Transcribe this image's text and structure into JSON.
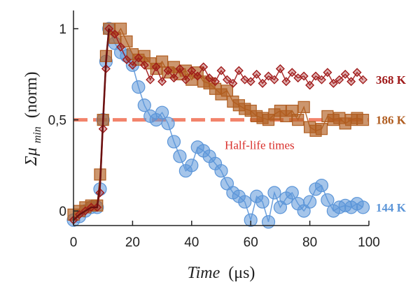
{
  "chart_data": {
    "type": "scatter",
    "xlabel_main": "Time",
    "xlabel_unit": "(μs)",
    "ylabel_main": "Σμ",
    "ylabel_sub": "min",
    "ylabel_unit": "(norm)",
    "xlim": [
      0,
      100
    ],
    "ylim": [
      -0.08,
      1.1
    ],
    "x_ticks": [
      0,
      20,
      40,
      60,
      80,
      100
    ],
    "x_tick_labels": [
      "0",
      "20",
      "40",
      "60",
      "80",
      "100"
    ],
    "y_ticks": [
      0,
      0.5,
      1
    ],
    "y_tick_labels": [
      "0",
      "0,5",
      "1"
    ],
    "grid": false,
    "reference_line": {
      "y": 0.5,
      "color": "#f2836b",
      "style": "dashed"
    },
    "annotation": {
      "text": "Half-life times",
      "x": 63,
      "y": 0.34,
      "color": "#d9302c"
    },
    "series": [
      {
        "name": "368 K",
        "color": "#a01a1a",
        "marker": "diamond",
        "x": [
          0,
          2,
          4,
          6,
          8,
          9,
          10,
          11,
          12,
          14,
          16,
          18,
          20,
          22,
          24,
          26,
          28,
          30,
          32,
          34,
          36,
          38,
          40,
          42,
          44,
          46,
          48,
          50,
          52,
          54,
          56,
          58,
          60,
          62,
          64,
          66,
          68,
          70,
          72,
          74,
          76,
          78,
          80,
          82,
          84,
          86,
          88,
          90,
          92,
          94,
          96,
          98
        ],
        "y": [
          -0.05,
          -0.02,
          0.0,
          0.02,
          0.02,
          0.1,
          0.45,
          0.78,
          1.0,
          0.97,
          0.9,
          0.83,
          0.8,
          0.84,
          0.8,
          0.72,
          0.79,
          0.71,
          0.77,
          0.73,
          0.78,
          0.72,
          0.77,
          0.74,
          0.79,
          0.73,
          0.71,
          0.77,
          0.72,
          0.7,
          0.77,
          0.72,
          0.71,
          0.75,
          0.7,
          0.74,
          0.72,
          0.78,
          0.71,
          0.76,
          0.73,
          0.74,
          0.69,
          0.74,
          0.72,
          0.76,
          0.7,
          0.72,
          0.75,
          0.71,
          0.76,
          0.72
        ]
      },
      {
        "name": "186 K",
        "color": "#b05d20",
        "marker": "square",
        "x": [
          0,
          2,
          4,
          6,
          8,
          9,
          10,
          11,
          12,
          14,
          16,
          18,
          20,
          22,
          24,
          26,
          28,
          30,
          32,
          34,
          36,
          38,
          40,
          42,
          44,
          46,
          48,
          50,
          52,
          54,
          56,
          58,
          60,
          62,
          64,
          66,
          68,
          70,
          72,
          74,
          76,
          78,
          80,
          82,
          84,
          86,
          88,
          90,
          92,
          94,
          96,
          98
        ],
        "y": [
          -0.02,
          0.0,
          0.02,
          0.03,
          0.03,
          0.2,
          0.5,
          0.85,
          1.0,
          0.95,
          1.0,
          0.93,
          0.86,
          0.83,
          0.85,
          0.81,
          0.78,
          0.82,
          0.76,
          0.79,
          0.75,
          0.77,
          0.72,
          0.76,
          0.71,
          0.7,
          0.67,
          0.64,
          0.66,
          0.6,
          0.58,
          0.56,
          0.55,
          0.52,
          0.51,
          0.5,
          0.53,
          0.55,
          0.52,
          0.55,
          0.5,
          0.57,
          0.46,
          0.44,
          0.45,
          0.52,
          0.5,
          0.51,
          0.48,
          0.5,
          0.51,
          0.5
        ]
      },
      {
        "name": "144 K",
        "color": "#5b95d8",
        "marker": "circle",
        "x": [
          0,
          2,
          4,
          6,
          8,
          9,
          10,
          11,
          12,
          14,
          16,
          18,
          20,
          22,
          24,
          26,
          28,
          30,
          32,
          34,
          36,
          38,
          40,
          42,
          44,
          46,
          48,
          50,
          52,
          54,
          56,
          58,
          60,
          62,
          64,
          66,
          68,
          70,
          72,
          74,
          76,
          78,
          80,
          82,
          84,
          86,
          88,
          90,
          92,
          94,
          96,
          98
        ],
        "y": [
          -0.05,
          -0.03,
          0.0,
          0.02,
          0.02,
          0.12,
          0.5,
          0.82,
          1.0,
          0.92,
          0.87,
          0.85,
          0.8,
          0.68,
          0.58,
          0.52,
          0.5,
          0.54,
          0.48,
          0.38,
          0.3,
          0.22,
          0.25,
          0.35,
          0.33,
          0.3,
          0.26,
          0.22,
          0.15,
          0.1,
          0.08,
          0.05,
          -0.05,
          0.08,
          0.05,
          -0.06,
          0.1,
          0.02,
          0.07,
          0.1,
          0.04,
          0.0,
          0.05,
          0.12,
          0.14,
          0.06,
          0.0,
          0.02,
          0.03,
          0.02,
          0.04,
          0.02
        ]
      }
    ],
    "fit_line": {
      "color": "#6b1010",
      "x": [
        0,
        2,
        4,
        6,
        8,
        9,
        10,
        11,
        12
      ],
      "y": [
        -0.05,
        -0.02,
        0.0,
        0.02,
        0.02,
        0.15,
        0.5,
        0.82,
        1.0
      ]
    }
  }
}
